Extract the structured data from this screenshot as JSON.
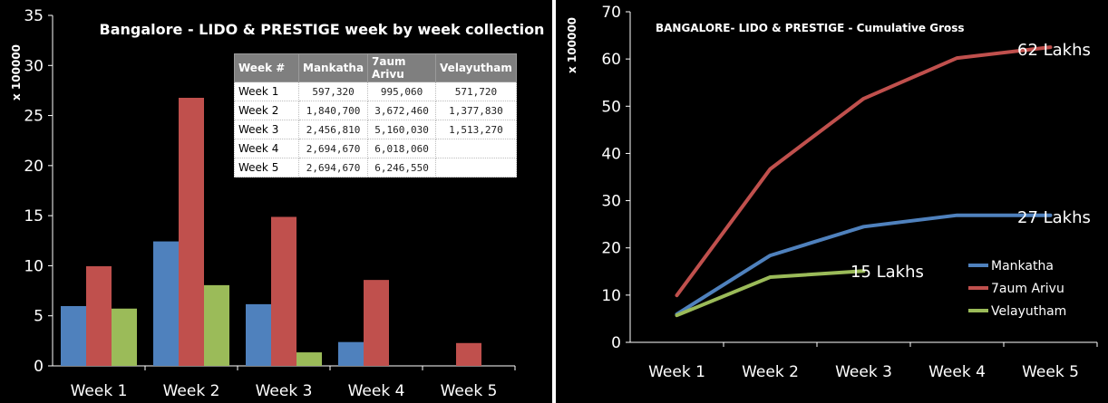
{
  "left_chart": {
    "title": "Bangalore - LIDO & PRESTIGE week by week collection",
    "y_unit_label": "x 100000",
    "table": {
      "headers": [
        "Week #",
        "Mankatha",
        "7aum Arivu",
        "Velayutham"
      ],
      "rows": [
        [
          "Week 1",
          "597,320",
          "995,060",
          "571,720"
        ],
        [
          "Week 2",
          "1,840,700",
          "3,672,460",
          "1,377,830"
        ],
        [
          "Week 3",
          "2,456,810",
          "5,160,030",
          "1,513,270"
        ],
        [
          "Week 4",
          "2,694,670",
          "6,018,060",
          ""
        ],
        [
          "Week 5",
          "2,694,670",
          "6,246,550",
          ""
        ]
      ]
    }
  },
  "right_chart": {
    "title": "BANGALORE- LIDO & PRESTIGE - Cumulative Gross",
    "y_unit_label": "x 100000",
    "end_labels": [
      "27 Lakhs",
      "62 Lakhs",
      "15 Lakhs"
    ]
  },
  "chart_data": [
    {
      "type": "bar",
      "title": "Bangalore - LIDO & PRESTIGE week by week collection",
      "ylabel": "x 100000",
      "xlabel": "",
      "categories": [
        "Week 1",
        "Week 2",
        "Week 3",
        "Week 4",
        "Week 5"
      ],
      "ylim": [
        0,
        35
      ],
      "yticks": [
        0,
        5,
        10,
        15,
        20,
        25,
        30,
        35
      ],
      "grid": false,
      "series": [
        {
          "color": "#4f81bd",
          "values": [
            5.97,
            12.43,
            6.16,
            2.38,
            0
          ]
        },
        {
          "color": "#c0504d",
          "values": [
            9.95,
            26.77,
            14.88,
            8.58,
            2.28
          ]
        },
        {
          "color": "#9bbb59",
          "values": [
            5.72,
            8.06,
            1.35,
            0,
            0
          ]
        }
      ]
    },
    {
      "type": "line",
      "title": "BANGALORE- LIDO & PRESTIGE - Cumulative Gross",
      "ylabel": "x 100000",
      "xlabel": "",
      "categories": [
        "Week 1",
        "Week 2",
        "Week 3",
        "Week 4",
        "Week 5"
      ],
      "ylim": [
        0,
        70
      ],
      "yticks": [
        0,
        10,
        20,
        30,
        40,
        50,
        60,
        70
      ],
      "grid": false,
      "legend_position": "right",
      "series": [
        {
          "name": "Mankatha",
          "color": "#4f81bd",
          "values": [
            5.97,
            18.4,
            24.5,
            26.9,
            26.9
          ]
        },
        {
          "name": "7aum Arivu",
          "color": "#c0504d",
          "values": [
            9.95,
            36.7,
            51.6,
            60.2,
            62.5
          ]
        },
        {
          "name": "Velayutham",
          "color": "#9bbb59",
          "values": [
            5.72,
            13.8,
            15.1,
            null,
            null
          ]
        }
      ]
    }
  ]
}
